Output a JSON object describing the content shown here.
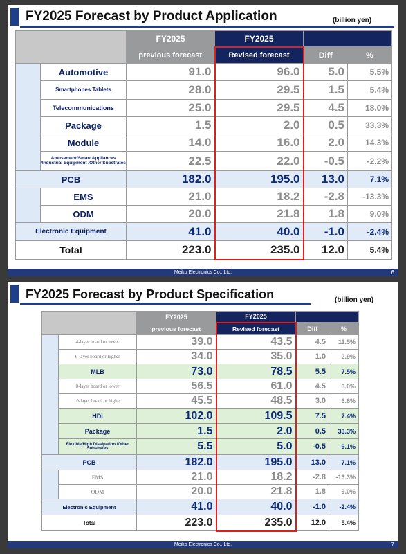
{
  "slide1": {
    "title": "FY2025 Forecast by Product Application",
    "unit": "(billion yen)",
    "footer": "Meiko Electronics Co., Ltd.",
    "page": "6",
    "header": {
      "fy_prev": "FY2025",
      "fy_rev": "FY2025",
      "prev": "previous forecast",
      "rev": "Revised forecast",
      "diff": "Diff",
      "pct": "%"
    },
    "rows": [
      {
        "label": "Automotive",
        "prev": "91.0",
        "rev": "96.0",
        "diff": "5.0",
        "pct": "5.5%"
      },
      {
        "label": "Smartphones\nTablets",
        "prev": "28.0",
        "rev": "29.5",
        "diff": "1.5",
        "pct": "5.4%"
      },
      {
        "label": "Telecommunications",
        "prev": "25.0",
        "rev": "29.5",
        "diff": "4.5",
        "pct": "18.0%"
      },
      {
        "label": "Package",
        "prev": "1.5",
        "rev": "2.0",
        "diff": "0.5",
        "pct": "33.3%"
      },
      {
        "label": "Module",
        "prev": "14.0",
        "rev": "16.0",
        "diff": "2.0",
        "pct": "14.3%"
      },
      {
        "label": "Amusement/Smart Appliances\n/Industrial Equipment\n/Other Substrates",
        "prev": "22.5",
        "rev": "22.0",
        "diff": "-0.5",
        "pct": "-2.2%"
      },
      {
        "label": "PCB",
        "prev": "182.0",
        "rev": "195.0",
        "diff": "13.0",
        "pct": "7.1%"
      },
      {
        "label": "EMS",
        "prev": "21.0",
        "rev": "18.2",
        "diff": "-2.8",
        "pct": "-13.3%"
      },
      {
        "label": "ODM",
        "prev": "20.0",
        "rev": "21.8",
        "diff": "1.8",
        "pct": "9.0%"
      },
      {
        "label": "Electronic Equipment",
        "prev": "41.0",
        "rev": "40.0",
        "diff": "-1.0",
        "pct": "-2.4%"
      },
      {
        "label": "Total",
        "prev": "223.0",
        "rev": "235.0",
        "diff": "12.0",
        "pct": "5.4%"
      }
    ]
  },
  "slide2": {
    "title": "FY2025 Forecast by Product Specification",
    "unit": "(billion yen)",
    "footer": "Meiko Electronics Co., Ltd.",
    "page": "7",
    "header": {
      "fy_prev": "FY2025",
      "fy_rev": "FY2025",
      "prev": "previous forecast",
      "rev": "Revised forecast",
      "diff": "Diff",
      "pct": "%"
    },
    "rows": [
      {
        "label": "4-layer board or lower",
        "prev": "39.0",
        "rev": "43.5",
        "diff": "4.5",
        "pct": "11.5%"
      },
      {
        "label": "6-layer board or higher",
        "prev": "34.0",
        "rev": "35.0",
        "diff": "1.0",
        "pct": "2.9%"
      },
      {
        "label": "MLB",
        "prev": "73.0",
        "rev": "78.5",
        "diff": "5.5",
        "pct": "7.5%"
      },
      {
        "label": "8-layer board or lower",
        "prev": "56.5",
        "rev": "61.0",
        "diff": "4.5",
        "pct": "8.0%"
      },
      {
        "label": "10-layer board or higher",
        "prev": "45.5",
        "rev": "48.5",
        "diff": "3.0",
        "pct": "6.6%"
      },
      {
        "label": "HDI",
        "prev": "102.0",
        "rev": "109.5",
        "diff": "7.5",
        "pct": "7.4%"
      },
      {
        "label": "Package",
        "prev": "1.5",
        "rev": "2.0",
        "diff": "0.5",
        "pct": "33.3%"
      },
      {
        "label": "Flexible/High Dissipation\n/Other Substrates",
        "prev": "5.5",
        "rev": "5.0",
        "diff": "-0.5",
        "pct": "-9.1%"
      },
      {
        "label": "PCB",
        "prev": "182.0",
        "rev": "195.0",
        "diff": "13.0",
        "pct": "7.1%"
      },
      {
        "label": "EMS",
        "prev": "21.0",
        "rev": "18.2",
        "diff": "-2.8",
        "pct": "-13.3%"
      },
      {
        "label": "ODM",
        "prev": "20.0",
        "rev": "21.8",
        "diff": "1.8",
        "pct": "9.0%"
      },
      {
        "label": "Electronic Equipment",
        "prev": "41.0",
        "rev": "40.0",
        "diff": "-1.0",
        "pct": "-2.4%"
      },
      {
        "label": "Total",
        "prev": "223.0",
        "rev": "235.0",
        "diff": "12.0",
        "pct": "5.4%"
      }
    ]
  }
}
